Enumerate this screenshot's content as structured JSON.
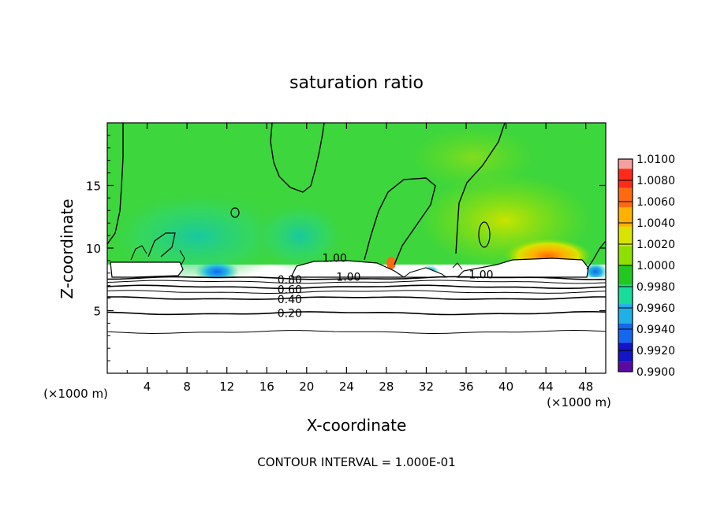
{
  "chart_data": {
    "type": "heatmap",
    "title": "saturation ratio",
    "xlabel": "X-coordinate",
    "ylabel": "Z-coordinate",
    "x_unit": "(×1000 m)",
    "y_unit": "(×1000 m)",
    "footer": "CONTOUR INTERVAL = 1.000E-01",
    "xlim": [
      0,
      50
    ],
    "ylim": [
      0,
      20
    ],
    "x_ticks": [
      "4",
      "8",
      "12",
      "16",
      "20",
      "24",
      "28",
      "32",
      "36",
      "40",
      "44",
      "48"
    ],
    "y_ticks": [
      "5",
      "10",
      "15"
    ],
    "colorbar": {
      "labels": [
        "1.0100",
        "1.0080",
        "1.0060",
        "1.0040",
        "1.0020",
        "1.0000",
        "0.9980",
        "0.9960",
        "0.9940",
        "0.9920",
        "0.9900"
      ],
      "colors": [
        "#f4a0a0",
        "#ff2a1a",
        "#ff6a10",
        "#ffb000",
        "#d8e400",
        "#8ee000",
        "#20c820",
        "#18dc9c",
        "#20b0e8",
        "#1468f0",
        "#1414c8",
        "#5a0aa0"
      ]
    },
    "contour_labels": [
      {
        "text": "0.80",
        "x": 18.3,
        "y": 7.5
      },
      {
        "text": "0.60",
        "x": 18.3,
        "y": 6.7
      },
      {
        "text": "0.40",
        "x": 18.3,
        "y": 5.9
      },
      {
        "text": "0.20",
        "x": 18.3,
        "y": 4.8
      },
      {
        "text": "1.00",
        "x": 22.8,
        "y": 9.2
      },
      {
        "text": "1.00",
        "x": 24.2,
        "y": 7.7
      },
      {
        "text": "1.00",
        "x": 37.5,
        "y": 7.9
      }
    ],
    "contour_levels_below_cloud": [
      {
        "level": "0.80",
        "z": 7.6
      },
      {
        "level": "0.70",
        "z": 7.3
      },
      {
        "level": "0.60",
        "z": 6.9
      },
      {
        "level": "0.50",
        "z": 6.5
      },
      {
        "level": "0.40",
        "z": 6.0
      },
      {
        "level": "0.20",
        "z": 4.8
      },
      {
        "level": "0.10",
        "z": 3.3
      }
    ]
  }
}
